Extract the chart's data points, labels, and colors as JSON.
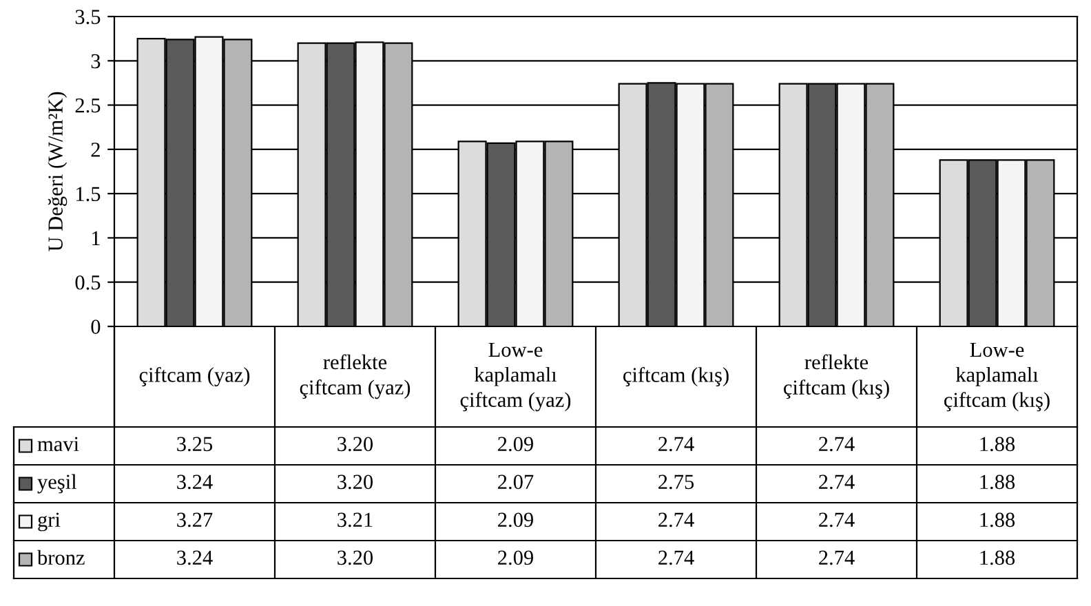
{
  "chart_data": {
    "type": "bar",
    "ylabel": "U Değeri (W/m²K)",
    "categories": [
      "çiftcam (yaz)",
      "reflekte\nçiftcam (yaz)",
      "Low-e\nkaplamalı\nçiftcam (yaz)",
      "çiftcam (kış)",
      "reflekte\nçiftcam (kış)",
      "Low-e\nkaplamalı\nçiftcam (kış)"
    ],
    "series": [
      {
        "name": "mavi",
        "color": "#dcdcdc",
        "values": [
          3.25,
          3.2,
          2.09,
          2.74,
          2.74,
          1.88
        ],
        "value_labels": [
          "3.25",
          "3.20",
          "2.09",
          "2.74",
          "2.74",
          "1.88"
        ]
      },
      {
        "name": "yeşil",
        "color": "#5a5a5a",
        "values": [
          3.24,
          3.2,
          2.07,
          2.75,
          2.74,
          1.88
        ],
        "value_labels": [
          "3.24",
          "3.20",
          "2.07",
          "2.75",
          "2.74",
          "1.88"
        ]
      },
      {
        "name": "gri",
        "color": "#f4f4f4",
        "values": [
          3.27,
          3.21,
          2.09,
          2.74,
          2.74,
          1.88
        ],
        "value_labels": [
          "3.27",
          "3.21",
          "2.09",
          "2.74",
          "2.74",
          "1.88"
        ]
      },
      {
        "name": "bronz",
        "color": "#b4b4b4",
        "values": [
          3.24,
          3.2,
          2.09,
          2.74,
          2.74,
          1.88
        ],
        "value_labels": [
          "3.24",
          "3.20",
          "2.09",
          "2.74",
          "2.74",
          "1.88"
        ]
      }
    ],
    "ylim": [
      0,
      3.5
    ],
    "yticks": [
      0,
      0.5,
      1,
      1.5,
      2,
      2.5,
      3,
      3.5
    ],
    "grid": "y",
    "legend": "bottom left"
  }
}
